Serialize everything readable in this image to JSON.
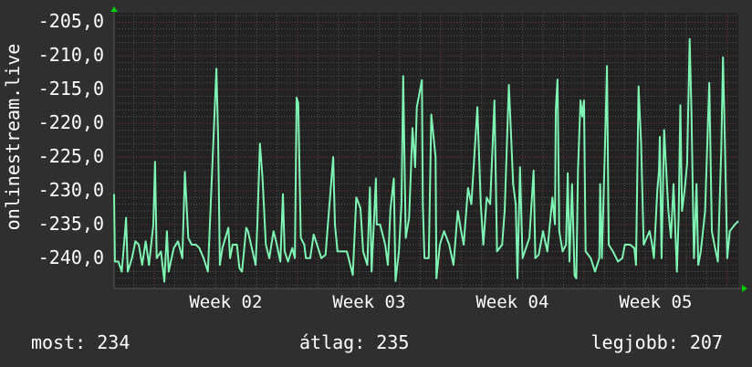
{
  "chart_data": {
    "type": "line",
    "ylabel": "onlinestream.live",
    "xunit": "hours",
    "xlim": [
      0,
      732
    ],
    "ylim": [
      -244.5,
      -203.6
    ],
    "yticks": [
      -205,
      -210,
      -215,
      -220,
      -225,
      -230,
      -235,
      -240
    ],
    "ytick_labels": [
      "-205,0",
      "-210,0",
      "-215,0",
      "-220,0",
      "-225,0",
      "-230,0",
      "-235,0",
      "-240,0"
    ],
    "xtick_labels": [
      {
        "label": "Week 02",
        "x": 131
      },
      {
        "label": "Week 03",
        "x": 299
      },
      {
        "label": "Week 04",
        "x": 467
      },
      {
        "label": "Week 05",
        "x": 635
      }
    ],
    "grid": true,
    "series": [
      {
        "name": "onlinestream.live",
        "color": "#7ff5b4",
        "points": [
          [
            0,
            -230.5
          ],
          [
            1,
            -240.5
          ],
          [
            5,
            -240.5
          ],
          [
            9,
            -242
          ],
          [
            13,
            -236
          ],
          [
            14,
            -234
          ],
          [
            16,
            -242
          ],
          [
            21,
            -240
          ],
          [
            25,
            -237.5
          ],
          [
            29,
            -238
          ],
          [
            33,
            -241
          ],
          [
            37,
            -237.5
          ],
          [
            41,
            -241
          ],
          [
            46,
            -235
          ],
          [
            48,
            -225.7
          ],
          [
            50,
            -240
          ],
          [
            55,
            -239
          ],
          [
            59,
            -243.5
          ],
          [
            62,
            -236
          ],
          [
            64,
            -242
          ],
          [
            70,
            -238.5
          ],
          [
            75,
            -237.5
          ],
          [
            80,
            -240
          ],
          [
            83,
            -227.2
          ],
          [
            87,
            -237
          ],
          [
            91,
            -238
          ],
          [
            96,
            -238
          ],
          [
            100,
            -238.5
          ],
          [
            105,
            -240
          ],
          [
            110,
            -242
          ],
          [
            112,
            -236
          ],
          [
            120,
            -211.9
          ],
          [
            122,
            -222
          ],
          [
            124,
            -241
          ],
          [
            127,
            -238.5
          ],
          [
            134,
            -235.5
          ],
          [
            136,
            -240
          ],
          [
            139,
            -238
          ],
          [
            144,
            -238
          ],
          [
            147,
            -241.5
          ],
          [
            150,
            -242
          ],
          [
            155,
            -235.5
          ],
          [
            157,
            -236
          ],
          [
            166,
            -241
          ],
          [
            168,
            -235
          ],
          [
            171,
            -223
          ],
          [
            174,
            -228
          ],
          [
            178,
            -238
          ],
          [
            182,
            -240
          ],
          [
            187,
            -236
          ],
          [
            190,
            -237.5
          ],
          [
            195,
            -240.5
          ],
          [
            198,
            -230.5
          ],
          [
            200,
            -239
          ],
          [
            204,
            -240.5
          ],
          [
            209,
            -238.5
          ],
          [
            212,
            -240
          ],
          [
            214,
            -216.2
          ],
          [
            216,
            -217
          ],
          [
            219,
            -237
          ],
          [
            223,
            -238
          ],
          [
            225,
            -240
          ],
          [
            230,
            -240
          ],
          [
            234,
            -236.5
          ],
          [
            238,
            -238
          ],
          [
            243,
            -240
          ],
          [
            248,
            -239.5
          ],
          [
            257,
            -225
          ],
          [
            259,
            -235
          ],
          [
            262,
            -239
          ],
          [
            273,
            -239
          ],
          [
            280,
            -242.5
          ],
          [
            284,
            -231
          ],
          [
            289,
            -232.6
          ],
          [
            292,
            -239
          ],
          [
            297,
            -241
          ],
          [
            300,
            -229.5
          ],
          [
            302,
            -242
          ],
          [
            307,
            -228.2
          ],
          [
            308,
            -235
          ],
          [
            312,
            -235
          ],
          [
            318,
            -238
          ],
          [
            321,
            -241
          ],
          [
            324,
            -232.8
          ],
          [
            328,
            -228.2
          ],
          [
            330,
            -243.4
          ],
          [
            334,
            -239
          ],
          [
            337,
            -232
          ],
          [
            339,
            -213
          ],
          [
            342,
            -237
          ],
          [
            346,
            -234
          ],
          [
            350,
            -220.7
          ],
          [
            353,
            -226.5
          ],
          [
            355,
            -217.6
          ],
          [
            361,
            -213.6
          ],
          [
            362,
            -232
          ],
          [
            364,
            -240
          ],
          [
            369,
            -240
          ],
          [
            372,
            -218.7
          ],
          [
            377,
            -225
          ],
          [
            378,
            -243
          ],
          [
            382,
            -238
          ],
          [
            387,
            -236
          ],
          [
            393,
            -238
          ],
          [
            398,
            -241
          ],
          [
            403,
            -233
          ],
          [
            407,
            -236
          ],
          [
            410,
            -238
          ],
          [
            415,
            -229.6
          ],
          [
            419,
            -232
          ],
          [
            426,
            -217.6
          ],
          [
            430,
            -232
          ],
          [
            433,
            -238
          ],
          [
            437,
            -231
          ],
          [
            441,
            -232
          ],
          [
            446,
            -216.6
          ],
          [
            449,
            -239
          ],
          [
            455,
            -238
          ],
          [
            458,
            -233
          ],
          [
            463,
            -214.3
          ],
          [
            468,
            -229
          ],
          [
            471,
            -232
          ],
          [
            473,
            -243
          ],
          [
            476,
            -226.5
          ],
          [
            479,
            -240
          ],
          [
            487,
            -237
          ],
          [
            492,
            -227
          ],
          [
            494,
            -240
          ],
          [
            498,
            -239.5
          ],
          [
            503,
            -236
          ],
          [
            508,
            -239
          ],
          [
            514,
            -231
          ],
          [
            517,
            -235
          ],
          [
            518,
            -218
          ],
          [
            520,
            -213.5
          ],
          [
            522,
            -236
          ],
          [
            526,
            -239
          ],
          [
            530,
            -238
          ],
          [
            532,
            -227.4
          ],
          [
            534,
            -240.5
          ],
          [
            537,
            -229
          ],
          [
            540,
            -242.6
          ],
          [
            542,
            -243
          ],
          [
            544,
            -227
          ],
          [
            547,
            -216.6
          ],
          [
            549,
            -219
          ],
          [
            551,
            -216.6
          ],
          [
            553,
            -239
          ],
          [
            559,
            -240
          ],
          [
            564,
            -242
          ],
          [
            569,
            -240
          ],
          [
            570,
            -229
          ],
          [
            572,
            -240
          ],
          [
            576,
            -222
          ],
          [
            578,
            -211.5
          ],
          [
            580,
            -238
          ],
          [
            585,
            -239
          ],
          [
            591,
            -240.5
          ],
          [
            596,
            -240
          ],
          [
            599,
            -238
          ],
          [
            605,
            -238
          ],
          [
            610,
            -238.5
          ],
          [
            612,
            -241
          ],
          [
            615,
            -214.5
          ],
          [
            618,
            -223
          ],
          [
            621,
            -238
          ],
          [
            628,
            -236
          ],
          [
            631,
            -238
          ],
          [
            633,
            -240
          ],
          [
            637,
            -230
          ],
          [
            639,
            -227
          ],
          [
            640,
            -222
          ],
          [
            642,
            -240
          ],
          [
            645,
            -221
          ],
          [
            650,
            -233
          ],
          [
            653,
            -237
          ],
          [
            656,
            -229
          ],
          [
            660,
            -242
          ],
          [
            662,
            -234
          ],
          [
            664,
            -217.3
          ],
          [
            666,
            -233
          ],
          [
            669,
            -230
          ],
          [
            672,
            -226
          ],
          [
            675,
            -207.5
          ],
          [
            677,
            -218
          ],
          [
            680,
            -240
          ],
          [
            683,
            -229
          ],
          [
            685,
            -241
          ],
          [
            688,
            -239
          ],
          [
            693,
            -233
          ],
          [
            698,
            -214
          ],
          [
            701,
            -236
          ],
          [
            704,
            -238
          ],
          [
            708,
            -240.5
          ],
          [
            712,
            -224
          ],
          [
            714,
            -210.2
          ],
          [
            716,
            -221
          ],
          [
            719,
            -240
          ],
          [
            722,
            -236
          ],
          [
            728,
            -235
          ],
          [
            732,
            -234.5
          ]
        ]
      }
    ]
  },
  "summary": {
    "current": "most: 234",
    "average": "átlag: 235",
    "best": "legjobb: 207"
  }
}
